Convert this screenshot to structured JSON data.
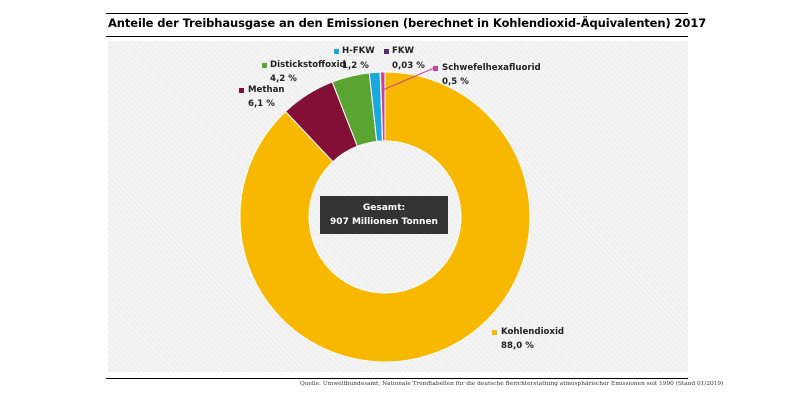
{
  "title": "Anteile der Treibhausgase an den Emissionen (berechnet in Kohlendioxid-Äquivalenten) 2017",
  "center": {
    "line1": "Gesamt:",
    "line2": "907 Millionen Tonnen"
  },
  "source": "Quelle: Umweltbundesamt, Nationale Trendtabellen für die deutsche Berichterstattung atmosphärischer Emissionen seit 1990 (Stand 01/2019)",
  "chart_data": {
    "type": "pie",
    "donut": true,
    "slices": [
      {
        "name": "Kohlendioxid",
        "value_label": "88,0 %",
        "value": 88.0,
        "color": "#f9b800"
      },
      {
        "name": "Methan",
        "value_label": "6,1 %",
        "value": 6.1,
        "color": "#830f37"
      },
      {
        "name": "Distickstoffoxid",
        "value_label": "4,2 %",
        "value": 4.2,
        "color": "#5aa532"
      },
      {
        "name": "H-FKW",
        "value_label": "1,2 %",
        "value": 1.2,
        "color": "#1ba7e0"
      },
      {
        "name": "FKW",
        "value_label": "0,03 %",
        "value": 0.03,
        "color": "#5c2e71"
      },
      {
        "name": "Schwefelhexafluorid",
        "value_label": "0,5 %",
        "value": 0.5,
        "color": "#c64499"
      }
    ]
  }
}
